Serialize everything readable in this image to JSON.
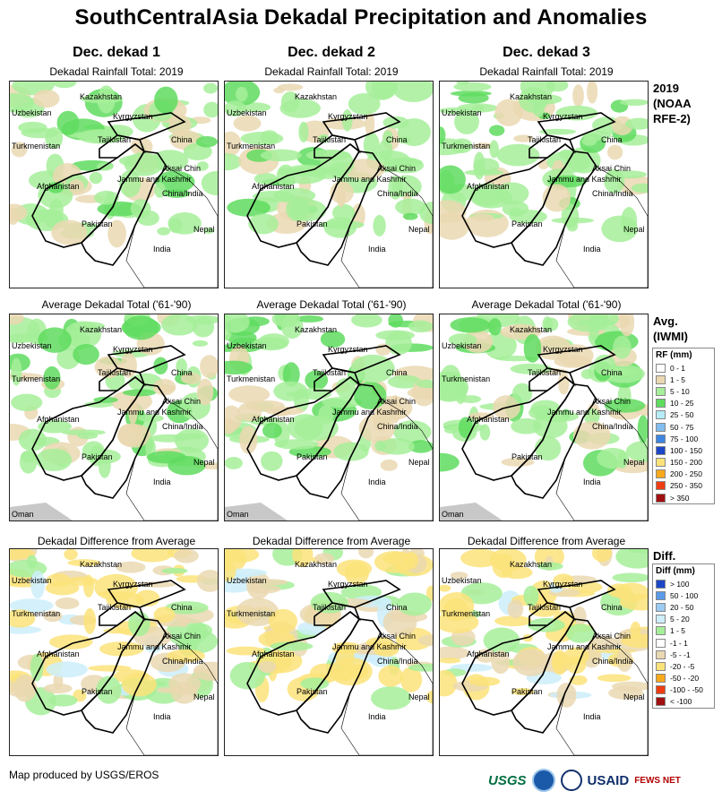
{
  "title": "SouthCentralAsia Dekadal Precipitation and Anomalies",
  "columns": [
    "Dec. dekad 1",
    "Dec. dekad 2",
    "Dec. dekad 3"
  ],
  "rows": [
    {
      "subtitle": "Dekadal Rainfall Total: 2019",
      "label": [
        "2019",
        "(NOAA",
        "RFE-2)"
      ]
    },
    {
      "subtitle": "Average Dekadal Total ('61-'90)",
      "label": [
        "Avg.",
        "(IWMI)"
      ]
    },
    {
      "subtitle": "Dekadal Difference from Average",
      "label": [
        "Diff."
      ]
    }
  ],
  "place_names": {
    "kazakhstan": "Kazakhstan",
    "uzbekistan": "Uzbekistan",
    "kyrgyzstan": "Kyrgyzstan",
    "turkmenistan": "Turkmenistan",
    "tajikistan": "Tajikistan",
    "china": "China",
    "aksai_chin": "Aksai Chin",
    "jammu_kashmir": "Jammu and Kashmir",
    "china_india": "China/India",
    "afghanistan": "Afghanistan",
    "pakistan": "Pakistan",
    "nepal": "Nepal",
    "india": "India",
    "oman": "Oman"
  },
  "rf_legend": {
    "title": "RF (mm)",
    "items": [
      {
        "label": "0 - 1",
        "color": "#ffffff"
      },
      {
        "label": "1 - 5",
        "color": "#ead8b1"
      },
      {
        "label": "5 - 10",
        "color": "#a6ef9a"
      },
      {
        "label": "10 - 25",
        "color": "#5fdc5f"
      },
      {
        "label": "25 - 50",
        "color": "#b6ecf6"
      },
      {
        "label": "50 - 75",
        "color": "#80bdf0"
      },
      {
        "label": "75 - 100",
        "color": "#3d85e0"
      },
      {
        "label": "100 - 150",
        "color": "#1c47c8"
      },
      {
        "label": "150 - 200",
        "color": "#fbe37a"
      },
      {
        "label": "200 - 250",
        "color": "#f8a91c"
      },
      {
        "label": "250 - 350",
        "color": "#ee3d12"
      },
      {
        "label": "> 350",
        "color": "#a01010"
      }
    ]
  },
  "diff_legend": {
    "title": "Diff (mm)",
    "items": [
      {
        "label": "> 100",
        "color": "#1c47c8"
      },
      {
        "label": "50 - 100",
        "color": "#5b9ae8"
      },
      {
        "label": "20 - 50",
        "color": "#9ccbf2"
      },
      {
        "label": "5 - 20",
        "color": "#cdeefa"
      },
      {
        "label": "1 - 5",
        "color": "#a6ef9a"
      },
      {
        "label": "-1 - 1",
        "color": "#ffffff"
      },
      {
        "label": "-5 - -1",
        "color": "#ead8b1"
      },
      {
        "label": "-20 - -5",
        "color": "#fbe37a"
      },
      {
        "label": "-50 - -20",
        "color": "#f8a91c"
      },
      {
        "label": "-100 - -50",
        "color": "#ee3d12"
      },
      {
        "label": "< -100",
        "color": "#a01010"
      }
    ]
  },
  "footer": "Map produced by USGS/EROS",
  "logos": {
    "usgs": "USGS",
    "usaid": "USAID",
    "fewsnet": "FEWS NET"
  }
}
